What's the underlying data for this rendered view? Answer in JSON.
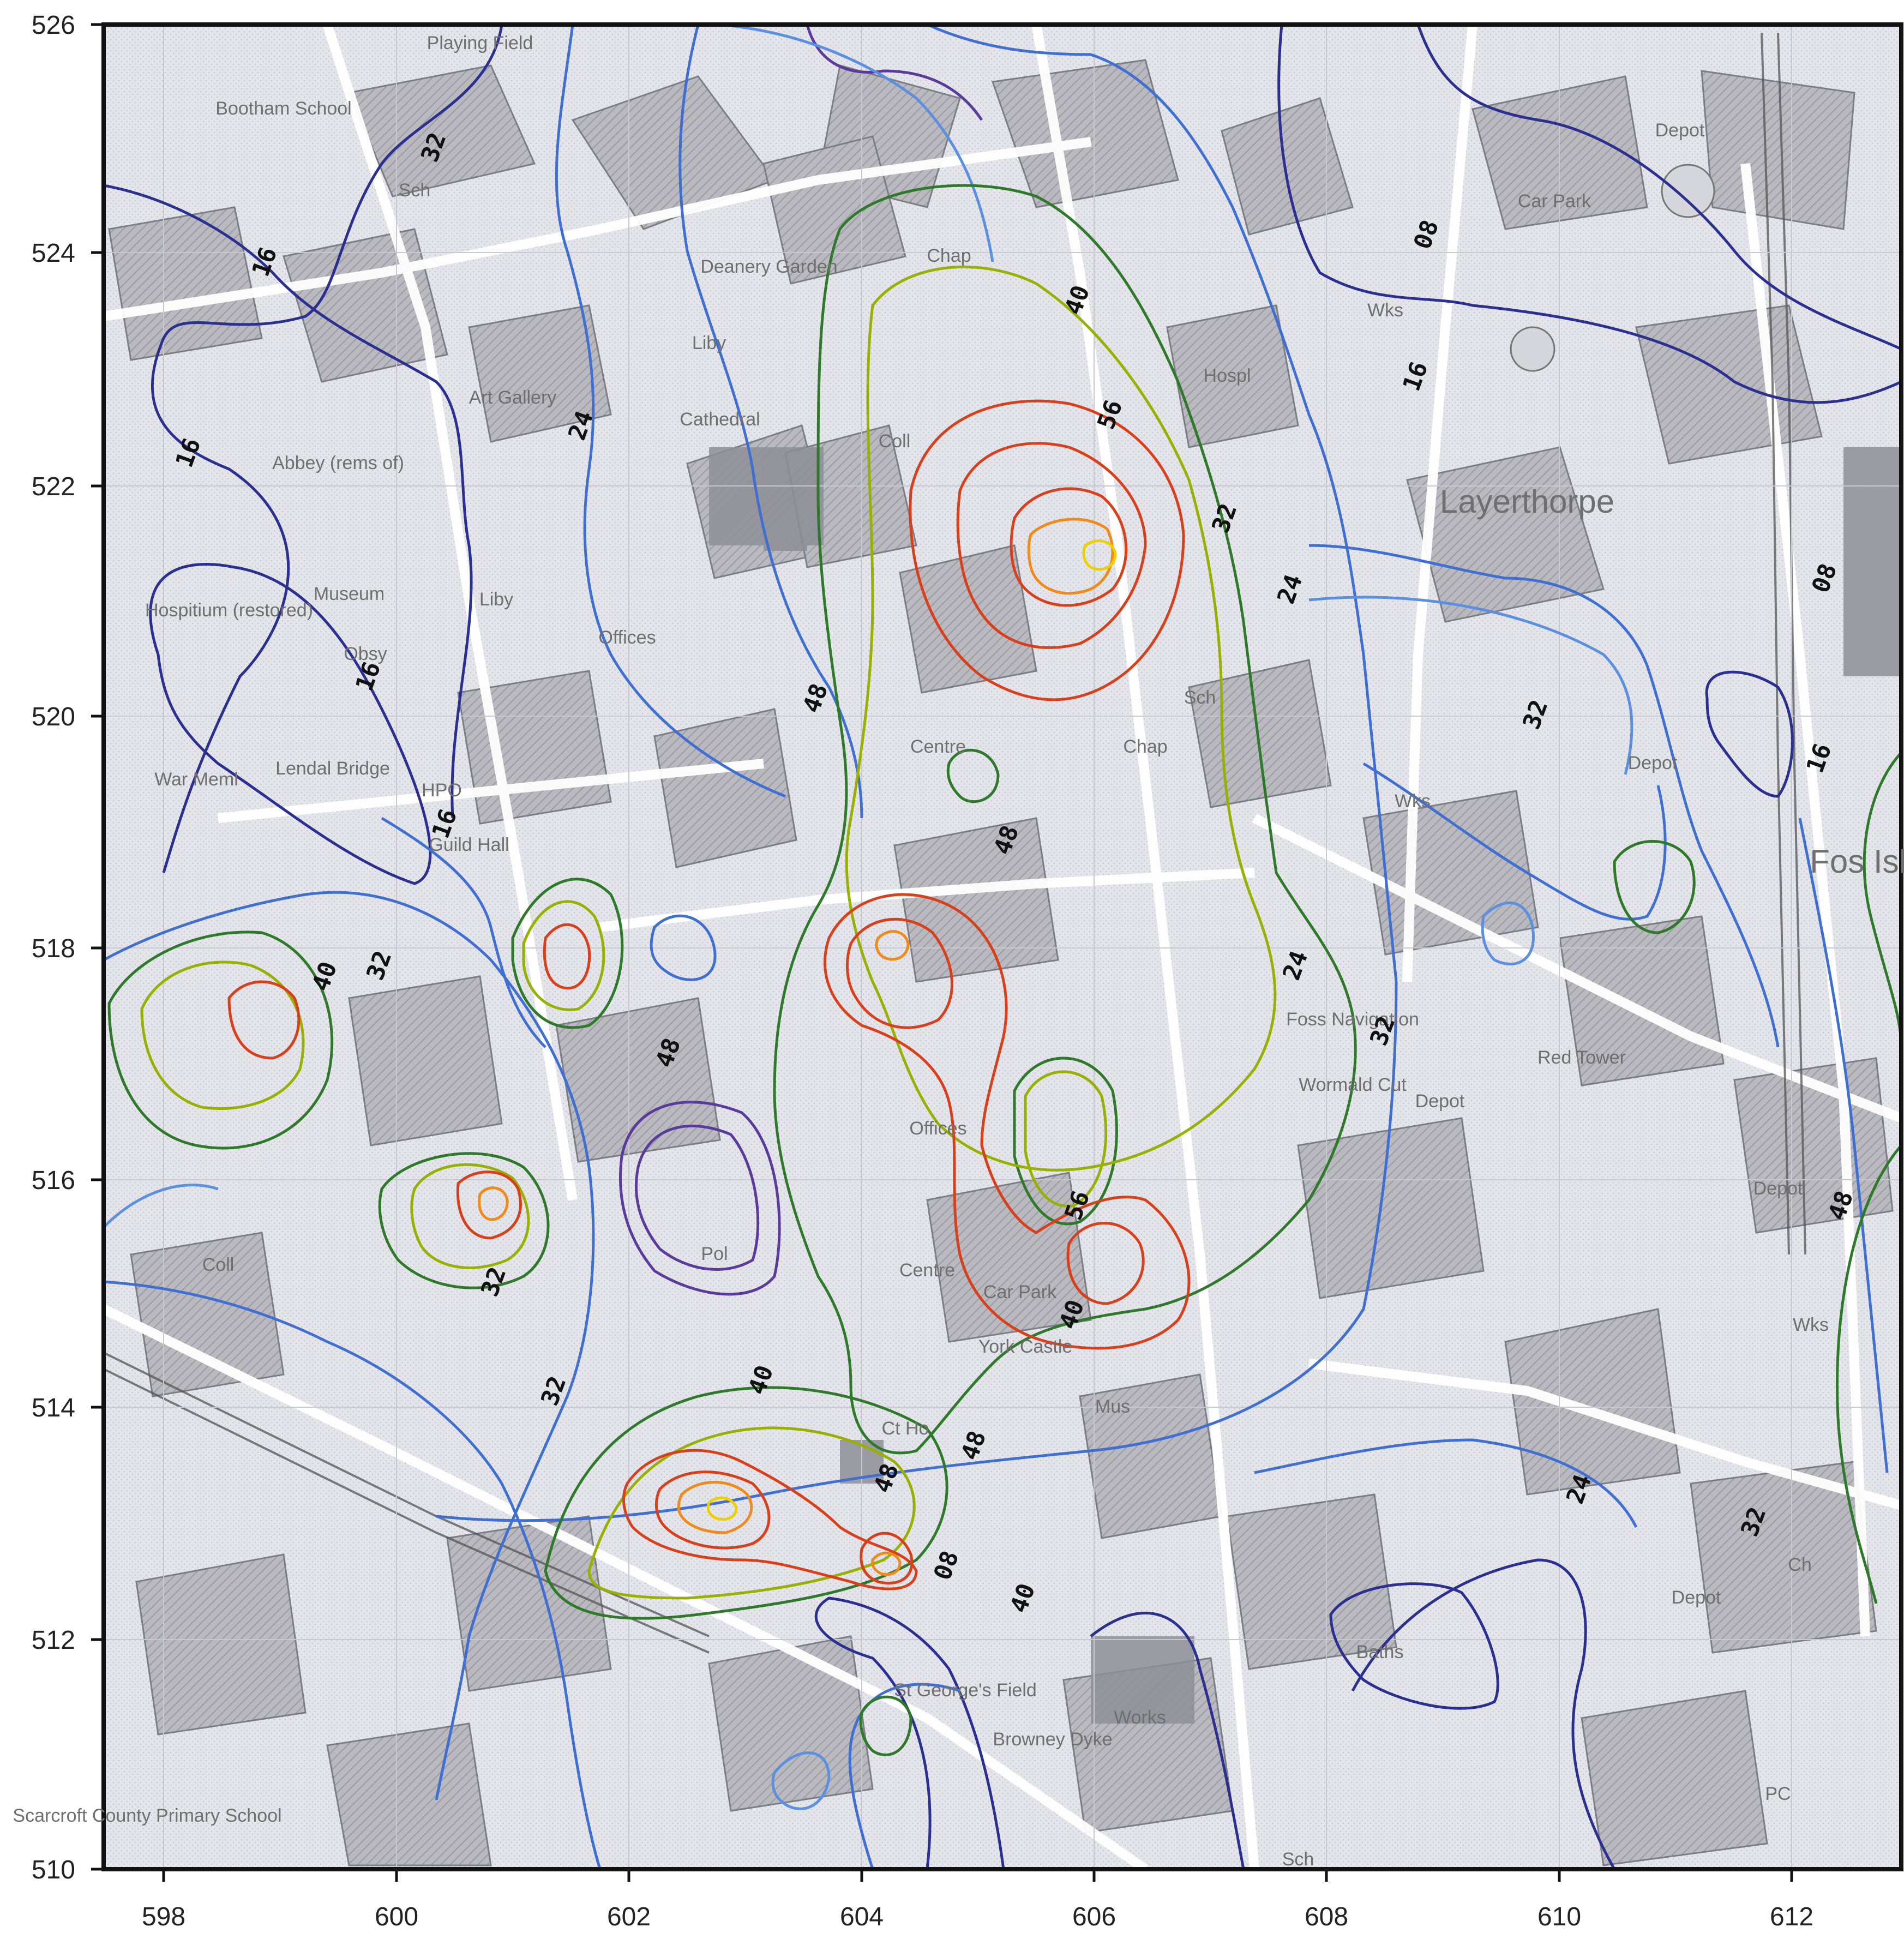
{
  "map": {
    "axes": {
      "x_ticks": [
        "598",
        "600",
        "602",
        "604",
        "606",
        "608",
        "610",
        "612"
      ],
      "y_ticks": [
        "526",
        "524",
        "522",
        "520",
        "518",
        "516",
        "514",
        "512",
        "510"
      ]
    },
    "place_labels": [
      {
        "id": "playing-field",
        "text": "Playing Field",
        "size": "small"
      },
      {
        "id": "bootham-school",
        "text": "Bootham School",
        "size": "small"
      },
      {
        "id": "sch-1",
        "text": "Sch",
        "size": "small"
      },
      {
        "id": "deanery-garden",
        "text": "Deanery Garden",
        "size": "small"
      },
      {
        "id": "liby-1",
        "text": "Liby",
        "size": "small"
      },
      {
        "id": "cathedral",
        "text": "Cathedral",
        "size": "small"
      },
      {
        "id": "art-gallery",
        "text": "Art Gallery",
        "size": "small"
      },
      {
        "id": "abbey-remains",
        "text": "Abbey (rems of)",
        "size": "small"
      },
      {
        "id": "museum",
        "text": "Museum",
        "size": "small"
      },
      {
        "id": "hospitium",
        "text": "Hospitium (restored)",
        "size": "small"
      },
      {
        "id": "obsy",
        "text": "Obsy",
        "size": "small"
      },
      {
        "id": "liby-2",
        "text": "Liby",
        "size": "small"
      },
      {
        "id": "offices-1",
        "text": "Offices",
        "size": "small"
      },
      {
        "id": "lendal-bridge",
        "text": "Lendal Bridge",
        "size": "small"
      },
      {
        "id": "hpo",
        "text": "HPO",
        "size": "small"
      },
      {
        "id": "guild-hall",
        "text": "Guild Hall",
        "size": "small"
      },
      {
        "id": "war-memorial",
        "text": "War Meml",
        "size": "small"
      },
      {
        "id": "chap-1",
        "text": "Chap",
        "size": "small"
      },
      {
        "id": "hospl",
        "text": "Hospl",
        "size": "small"
      },
      {
        "id": "coll",
        "text": "Coll",
        "size": "small"
      },
      {
        "id": "wks-1",
        "text": "Wks",
        "size": "small"
      },
      {
        "id": "car-park-1",
        "text": "Car Park",
        "size": "small"
      },
      {
        "id": "depot-1",
        "text": "Depot",
        "size": "small"
      },
      {
        "id": "layerthorpe",
        "text": "Layerthorpe",
        "size": "large"
      },
      {
        "id": "centre-1",
        "text": "Centre",
        "size": "small"
      },
      {
        "id": "sch-2",
        "text": "Sch",
        "size": "small"
      },
      {
        "id": "chap-2",
        "text": "Chap",
        "size": "small"
      },
      {
        "id": "depot-2",
        "text": "Depot",
        "size": "small"
      },
      {
        "id": "wks-2",
        "text": "Wks",
        "size": "small"
      },
      {
        "id": "foss-navigation",
        "text": "Foss Navigation",
        "size": "small"
      },
      {
        "id": "red-tower",
        "text": "Red Tower",
        "size": "small"
      },
      {
        "id": "wormald-cut",
        "text": "Wormald Cut",
        "size": "small"
      },
      {
        "id": "depot-3",
        "text": "Depot",
        "size": "small"
      },
      {
        "id": "depot-4",
        "text": "Depot",
        "size": "small"
      },
      {
        "id": "foss-islands",
        "text": "Fos Islan",
        "size": "large"
      },
      {
        "id": "wks-3",
        "text": "Wks",
        "size": "small"
      },
      {
        "id": "offices-2",
        "text": "Offices",
        "size": "small"
      },
      {
        "id": "centre-2",
        "text": "Centre",
        "size": "small"
      },
      {
        "id": "car-park-2",
        "text": "Car Park",
        "size": "small"
      },
      {
        "id": "york-castle",
        "text": "York Castle",
        "size": "small"
      },
      {
        "id": "pol",
        "text": "Pol",
        "size": "small"
      },
      {
        "id": "ct-ho",
        "text": "Ct Ho",
        "size": "small"
      },
      {
        "id": "mus",
        "text": "Mus",
        "size": "small"
      },
      {
        "id": "st-georges-field",
        "text": "St George's Field",
        "size": "small"
      },
      {
        "id": "brownie-dyke",
        "text": "Browney Dyke",
        "size": "small"
      },
      {
        "id": "works",
        "text": "Works",
        "size": "small"
      },
      {
        "id": "baths",
        "text": "Baths",
        "size": "small"
      },
      {
        "id": "depot-5",
        "text": "Depot",
        "size": "small"
      },
      {
        "id": "scarcroft-school",
        "text": "Scarcroft County Primary School",
        "size": "small"
      },
      {
        "id": "sch-3",
        "text": "Sch",
        "size": "small"
      },
      {
        "id": "pc",
        "text": "PC",
        "size": "small"
      },
      {
        "id": "ch-1",
        "text": "Ch",
        "size": "small"
      },
      {
        "id": "coll-2",
        "text": "Coll",
        "size": "small"
      }
    ],
    "contour_labels": [
      {
        "id": "c-32-a",
        "text": "32"
      },
      {
        "id": "c-16-a",
        "text": "16"
      },
      {
        "id": "c-16-b",
        "text": "16"
      },
      {
        "id": "c-24-a",
        "text": "24"
      },
      {
        "id": "c-40-a",
        "text": "40"
      },
      {
        "id": "c-56-a",
        "text": "56"
      },
      {
        "id": "c-08-a",
        "text": "08"
      },
      {
        "id": "c-16-c",
        "text": "16"
      },
      {
        "id": "c-32-b",
        "text": "32"
      },
      {
        "id": "c-24-b",
        "text": "24"
      },
      {
        "id": "c-08-b",
        "text": "08"
      },
      {
        "id": "c-48-a",
        "text": "48"
      },
      {
        "id": "c-16-d",
        "text": "16"
      },
      {
        "id": "c-32-c",
        "text": "32"
      },
      {
        "id": "c-16-e",
        "text": "16"
      },
      {
        "id": "c-48-b",
        "text": "48"
      },
      {
        "id": "c-40-b",
        "text": "40"
      },
      {
        "id": "c-32-d",
        "text": "32"
      },
      {
        "id": "c-48-c",
        "text": "48"
      },
      {
        "id": "c-24-c",
        "text": "24"
      },
      {
        "id": "c-16-f",
        "text": "16"
      },
      {
        "id": "c-32-e",
        "text": "32"
      },
      {
        "id": "c-32-f",
        "text": "32"
      },
      {
        "id": "c-40-c",
        "text": "40"
      },
      {
        "id": "c-32-g",
        "text": "32"
      },
      {
        "id": "c-48-d",
        "text": "48"
      },
      {
        "id": "c-56-b",
        "text": "56"
      },
      {
        "id": "c-40-d",
        "text": "40"
      },
      {
        "id": "c-48-e",
        "text": "48"
      },
      {
        "id": "c-24-d",
        "text": "24"
      },
      {
        "id": "c-32-h",
        "text": "32"
      },
      {
        "id": "c-48-f",
        "text": "48"
      },
      {
        "id": "c-08-c",
        "text": "08"
      },
      {
        "id": "c-40-e",
        "text": "40"
      }
    ],
    "colors": {
      "contour_darkblue": "#2b2f8f",
      "contour_purple": "#5a3a9a",
      "contour_blue": "#3f6fd0",
      "contour_lightblue": "#5b8fe0",
      "contour_green": "#2f7a2a",
      "contour_yellowgreen": "#9ab000",
      "contour_red": "#d8401c",
      "contour_orange": "#f08a1a",
      "contour_yellow": "#ecd000",
      "building_fill": "#a9a9ad",
      "map_background": "#ececf2"
    }
  }
}
